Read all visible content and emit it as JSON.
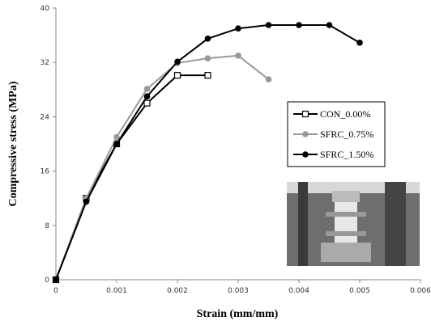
{
  "chart_data": {
    "type": "line",
    "xlabel": "Strain (mm/mm)",
    "ylabel": "Compressive stress (MPa)",
    "xlim": [
      0,
      0.006
    ],
    "xticks": [
      0,
      0.001,
      0.002,
      0.003,
      0.004,
      0.005,
      0.006
    ],
    "ylim": [
      0,
      40
    ],
    "yticks": [
      0,
      8,
      16,
      24,
      32,
      40
    ],
    "series": [
      {
        "name": "CON_0.00%",
        "color": "#000000",
        "marker": "open-square",
        "x": [
          0,
          0.0005,
          0.001,
          0.0015,
          0.002,
          0.0025
        ],
        "values": [
          0,
          12,
          20,
          26,
          30.1,
          30.1
        ]
      },
      {
        "name": "SFRC_0.75%",
        "color": "#999999",
        "marker": "circle",
        "x": [
          0,
          0.0005,
          0.001,
          0.0015,
          0.002,
          0.0025,
          0.003,
          0.0035
        ],
        "values": [
          0,
          12,
          21,
          28.1,
          31.9,
          32.6,
          33,
          29.5
        ]
      },
      {
        "name": "SFRC_1.50%",
        "color": "#000000",
        "marker": "circle",
        "x": [
          0,
          0.0005,
          0.001,
          0.0015,
          0.002,
          0.0025,
          0.003,
          0.0035,
          0.004,
          0.0045,
          0.005
        ],
        "values": [
          0,
          11.5,
          20,
          27,
          32.1,
          35.5,
          37,
          37.5,
          37.5,
          37.5,
          34.9
        ]
      }
    ]
  }
}
